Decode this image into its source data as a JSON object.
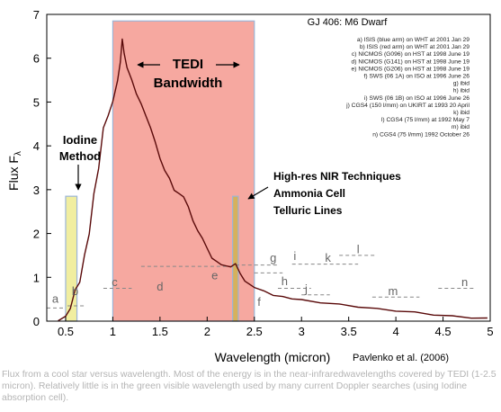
{
  "chart_data": {
    "type": "line",
    "title": "GJ 406: M6 Dwarf",
    "xlabel": "Wavelength (micron)",
    "ylabel": "Flux F",
    "ylabel_subscript": "λ",
    "xlim": [
      0.3,
      5.0
    ],
    "ylim": [
      0,
      7
    ],
    "xticks": [
      {
        "value": 0.5,
        "label": "0.5"
      },
      {
        "value": 1,
        "label": "1"
      },
      {
        "value": 1.5,
        "label": "1.5"
      },
      {
        "value": 2,
        "label": "2"
      },
      {
        "value": 2.5,
        "label": "2.5"
      },
      {
        "value": 3,
        "label": "3"
      },
      {
        "value": 3.5,
        "label": "3.5"
      },
      {
        "value": 4,
        "label": "4"
      },
      {
        "value": 4.5,
        "label": "4.5"
      },
      {
        "value": 5,
        "label": "5"
      }
    ],
    "yticks": [
      {
        "value": 0,
        "label": "0"
      },
      {
        "value": 1,
        "label": "1"
      },
      {
        "value": 2,
        "label": "2"
      },
      {
        "value": 3,
        "label": "3"
      },
      {
        "value": 4,
        "label": "4"
      },
      {
        "value": 5,
        "label": "5"
      },
      {
        "value": 6,
        "label": "6"
      },
      {
        "value": 7,
        "label": "7"
      }
    ],
    "series": [
      {
        "color": "#5a0a0a",
        "x": [
          0.42,
          0.5,
          0.55,
          0.6,
          0.65,
          0.7,
          0.75,
          0.8,
          0.85,
          0.9,
          0.95,
          1.0,
          1.05,
          1.08,
          1.1,
          1.12,
          1.15,
          1.2,
          1.25,
          1.3,
          1.35,
          1.4,
          1.45,
          1.5,
          1.55,
          1.6,
          1.65,
          1.7,
          1.75,
          1.8,
          1.85,
          1.9,
          1.95,
          2.0,
          2.05,
          2.1,
          2.15,
          2.2,
          2.25,
          2.3,
          2.35,
          2.4,
          2.5,
          2.6,
          2.7,
          2.8,
          2.9,
          3.0,
          3.2,
          3.4,
          3.6,
          3.8,
          4.0,
          4.2,
          4.4,
          4.6,
          4.8,
          4.97
        ],
        "y": [
          0.02,
          0.1,
          0.3,
          0.7,
          0.9,
          1.5,
          2.0,
          2.9,
          3.5,
          4.4,
          4.7,
          5.0,
          5.5,
          5.9,
          6.45,
          6.1,
          5.8,
          5.5,
          5.2,
          4.95,
          4.7,
          4.4,
          4.1,
          3.7,
          3.45,
          3.25,
          3.0,
          2.9,
          2.85,
          2.6,
          2.3,
          2.05,
          1.9,
          1.65,
          1.45,
          1.35,
          1.3,
          1.25,
          1.25,
          1.3,
          1.1,
          0.9,
          0.78,
          0.68,
          0.6,
          0.55,
          0.52,
          0.48,
          0.43,
          0.38,
          0.33,
          0.28,
          0.24,
          0.2,
          0.15,
          0.11,
          0.08,
          0.06
        ]
      }
    ],
    "bands": [
      {
        "name": "TEDI",
        "x0": 1.0,
        "x1": 2.5,
        "y1": 6.85,
        "color": "#f6a8a0",
        "border": "#9bb4d6"
      },
      {
        "name": "Iodine",
        "x0": 0.5,
        "x1": 0.62,
        "y1": 2.85,
        "color": "#f1eea0",
        "border": "#9bb4d6"
      },
      {
        "name": "NIR",
        "x0": 2.27,
        "x1": 2.33,
        "y1": 2.85,
        "color": "#d6b15c",
        "border": "#9bb4d6"
      }
    ],
    "segments": [
      {
        "x0": 0.3,
        "x1": 0.5,
        "y": 0.3
      },
      {
        "x0": 0.52,
        "x1": 0.7,
        "y": 0.35
      },
      {
        "x0": 0.9,
        "x1": 1.2,
        "y": 0.75
      },
      {
        "x0": 1.3,
        "x1": 2.3,
        "y": 1.25
      },
      {
        "x0": 2.3,
        "x1": 2.75,
        "y": 1.28
      },
      {
        "x0": 2.5,
        "x1": 2.8,
        "y": 1.1
      },
      {
        "x0": 2.75,
        "x1": 3.1,
        "y": 0.75
      },
      {
        "x0": 2.9,
        "x1": 3.3,
        "y": 1.3
      },
      {
        "x0": 3.0,
        "x1": 3.3,
        "y": 0.6
      },
      {
        "x0": 3.3,
        "x1": 3.6,
        "y": 1.3
      },
      {
        "x0": 3.4,
        "x1": 3.8,
        "y": 1.5
      },
      {
        "x0": 3.75,
        "x1": 4.25,
        "y": 0.55
      },
      {
        "x0": 4.45,
        "x1": 4.85,
        "y": 0.75
      }
    ],
    "point_labels": [
      {
        "text": "a",
        "x": 0.39,
        "y": 0.42
      },
      {
        "text": "b",
        "x": 0.6,
        "y": 0.6
      },
      {
        "text": "c",
        "x": 1.02,
        "y": 0.8
      },
      {
        "text": "d",
        "x": 1.5,
        "y": 0.7
      },
      {
        "text": "e",
        "x": 2.08,
        "y": 0.95
      },
      {
        "text": "f",
        "x": 2.55,
        "y": 0.35
      },
      {
        "text": "g",
        "x": 2.7,
        "y": 1.35
      },
      {
        "text": "h",
        "x": 2.82,
        "y": 0.82
      },
      {
        "text": "i",
        "x": 2.93,
        "y": 1.4
      },
      {
        "text": "j",
        "x": 3.05,
        "y": 0.65
      },
      {
        "text": "k",
        "x": 3.28,
        "y": 1.35
      },
      {
        "text": "l",
        "x": 3.6,
        "y": 1.55
      },
      {
        "text": "m",
        "x": 3.97,
        "y": 0.6
      },
      {
        "text": "n",
        "x": 4.73,
        "y": 0.8
      }
    ],
    "legend_title": "GJ 406: M6 Dwarf",
    "legend_entries": [
      "a) ISIS (blue arm) on WHT at 2001 Jan 29",
      "b) ISIS (red arm) on WHT at 2001 Jan 29",
      "c) NICMOS (G096) on HST at 1998 June 19",
      "d) NICMOS (G141) on HST at 1998 June 19",
      "e) NICMOS (G206) on HST at 1998 June 19",
      "f) SWS (06 1A) on ISO at 1996 June 26",
      "g) ibid",
      "h) ibid",
      "i) SWS (06 1B) on ISO at 1996 June 26",
      "j) CGS4 (150 l/mm) on UKIRT at 1993 20 April",
      "k) ibid",
      "l) CGS4 (75 l/mm) at 1992 May 7",
      "m) ibid",
      "n) CGS4 (75 l/mm) 1992 October 26"
    ],
    "annotations": {
      "tedi_line1": "TEDI",
      "tedi_line2": "Bandwidth",
      "iodine_line1": "Iodine",
      "iodine_line2": "Method",
      "nir_line1": "High-res NIR Techniques",
      "nir_line2": "Ammonia Cell",
      "nir_line3": "Telluric Lines"
    },
    "citation": "Pavlenko et al. (2006)"
  },
  "caption": "Flux from a cool star versus wavelength.  Most of the energy is in the near-infraredwavelengths covered by TEDI (1-2.5 micron).  Relatively little is in the green visible wavelength used by many current Doppler searches (using Iodine absorption cell)."
}
